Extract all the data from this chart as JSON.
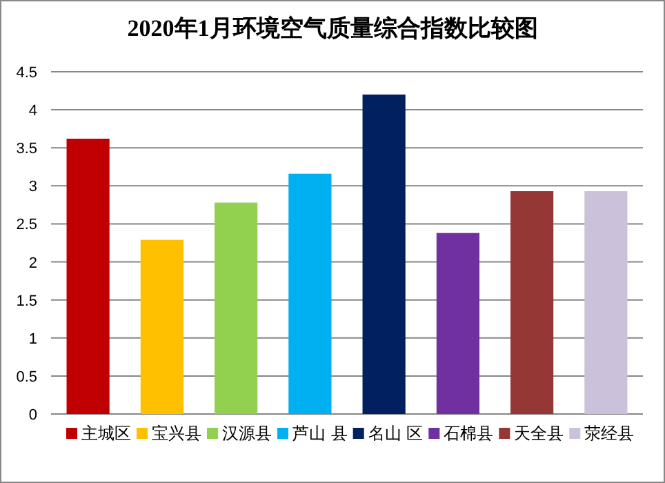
{
  "chart_data": {
    "type": "bar",
    "title": "2020年1月环境空气质量综合指数比较图",
    "categories": [
      null
    ],
    "series": [
      {
        "name": "主城区",
        "color": "#c00000",
        "values": [
          3.62
        ]
      },
      {
        "name": "宝兴县",
        "color": "#ffc000",
        "values": [
          2.29
        ]
      },
      {
        "name": "汉源县",
        "color": "#92d050",
        "values": [
          2.78
        ]
      },
      {
        "name": "芦山 县",
        "color": "#00b0f0",
        "values": [
          3.16
        ]
      },
      {
        "name": "名山 区",
        "color": "#002060",
        "values": [
          4.2
        ]
      },
      {
        "name": "石棉县",
        "color": "#7030a0",
        "values": [
          2.38
        ]
      },
      {
        "name": "天全县",
        "color": "#953735",
        "values": [
          2.93
        ]
      },
      {
        "name": "荥经县",
        "color": "#ccc1da",
        "values": [
          2.93
        ]
      }
    ],
    "ylim": [
      0,
      4.5
    ],
    "yticks": [
      0,
      0.5,
      1,
      1.5,
      2,
      2.5,
      3,
      3.5,
      4,
      4.5
    ],
    "grid": "y",
    "legend": "bottom"
  }
}
